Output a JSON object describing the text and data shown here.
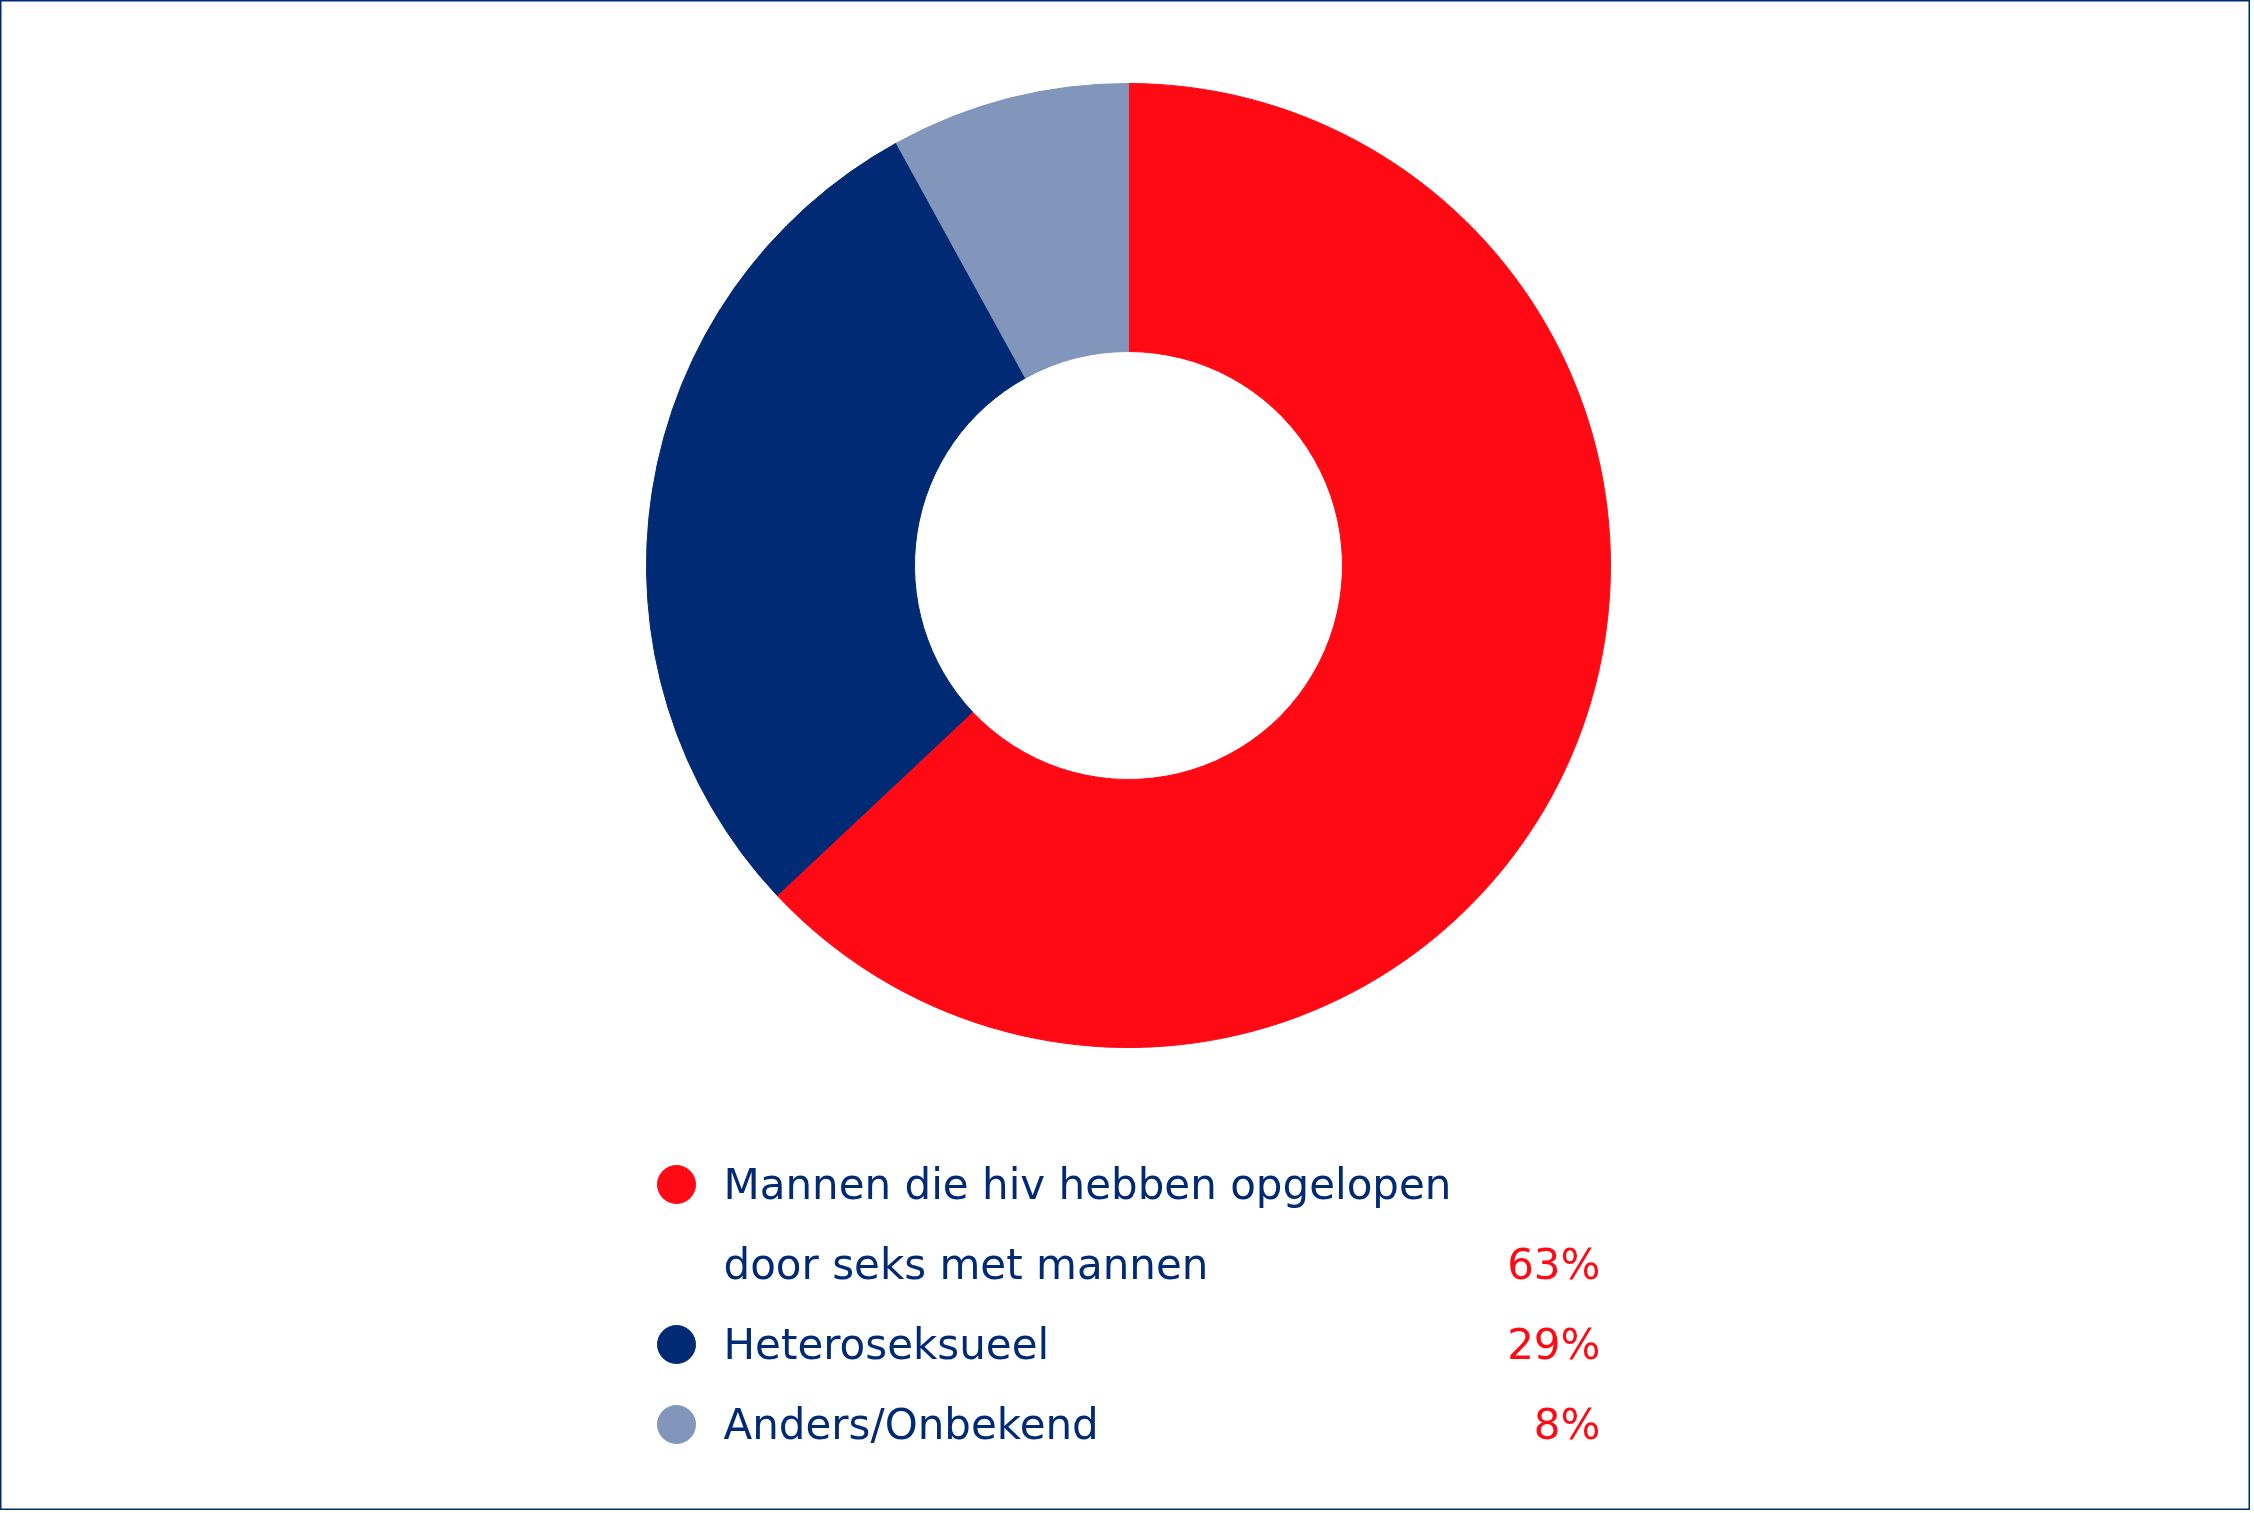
{
  "chart_data": {
    "type": "donut",
    "categories": [
      "Mannen die hiv hebben opgelopen\ndoor seks met mannen",
      "Heteroseksueel",
      "Anders/Onbekend"
    ],
    "values": [
      63,
      29,
      8
    ],
    "colors": [
      "#ff0a14",
      "#002a74",
      "#8296bc"
    ],
    "value_labels": [
      "63%",
      "29%",
      "8%"
    ],
    "legend": "bottom"
  }
}
